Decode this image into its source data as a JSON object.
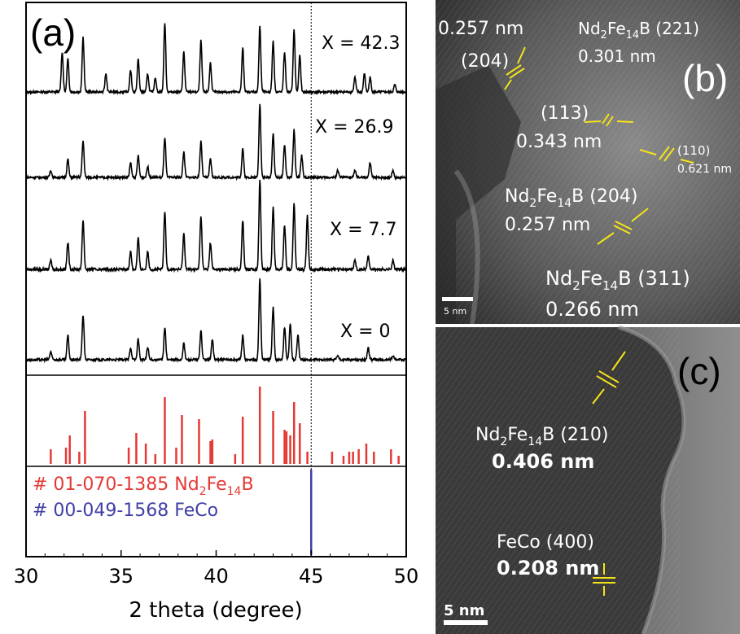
{
  "panel_a": {
    "label": "(a)",
    "xlabel": "2 theta (degree)",
    "xticks": [
      "30",
      "35",
      "40",
      "45",
      "50"
    ],
    "reference_line_x": 45,
    "pattern_labels": [
      "X = 42.3",
      "X = 26.9",
      "X = 7.7",
      "X = 0"
    ],
    "ref1": {
      "prefix": "# 01-070-1385 Nd",
      "sub1": "2",
      "mid": "Fe",
      "sub2": "14",
      "suffix": "B",
      "color": "#e53935"
    },
    "ref2": {
      "text": "# 00-049-1568 FeCo",
      "color": "#3f3fa6"
    }
  },
  "panel_b": {
    "label": "(b)",
    "scalebar": "5 nm",
    "annotations": {
      "a1": "0.257 nm",
      "a2": "(204)",
      "a3_pre": "Nd",
      "a3_s1": "2",
      "a3_mid": "Fe",
      "a3_s2": "14",
      "a3_post": "B (221)",
      "a4": "0.301 nm",
      "a5": "(113)",
      "a6": "0.343 nm",
      "a7": "(110)",
      "a8": "0.621 nm",
      "a9_pre": "Nd",
      "a9_s1": "2",
      "a9_mid": "Fe",
      "a9_s2": "14",
      "a9_post": "B (204)",
      "a10": "0.257 nm",
      "a11_pre": "Nd",
      "a11_s1": "2",
      "a11_mid": "Fe",
      "a11_s2": "14",
      "a11_post": "B (311)",
      "a12": "0.266 nm"
    }
  },
  "panel_c": {
    "label": "(c)",
    "scalebar": "5 nm",
    "annotations": {
      "c1_pre": "Nd",
      "c1_s1": "2",
      "c1_mid": "Fe",
      "c1_s2": "14",
      "c1_post": "B (210)",
      "c2": "0.406 nm",
      "c3": "FeCo (400)",
      "c4": "0.208 nm"
    }
  },
  "colors": {
    "ref_red": "#e53935",
    "ref_blue": "#3f3fa6",
    "annotation": "#f5e31a"
  },
  "chart_data": {
    "type": "line",
    "xlabel": "2 theta (degree)",
    "xlim": [
      30,
      50
    ],
    "xticks": [
      30,
      35,
      40,
      45,
      50
    ],
    "series": [
      {
        "name": "X = 42.3",
        "peaks": [
          [
            31.9,
            0.55
          ],
          [
            32.2,
            0.45
          ],
          [
            33.0,
            0.75
          ],
          [
            34.2,
            0.25
          ],
          [
            35.5,
            0.3
          ],
          [
            35.9,
            0.45
          ],
          [
            36.4,
            0.25
          ],
          [
            36.8,
            0.2
          ],
          [
            37.3,
            0.95
          ],
          [
            38.3,
            0.55
          ],
          [
            39.2,
            0.7
          ],
          [
            39.7,
            0.4
          ],
          [
            41.4,
            0.6
          ],
          [
            42.3,
            0.9
          ],
          [
            43.0,
            0.7
          ],
          [
            43.6,
            0.55
          ],
          [
            44.1,
            0.85
          ],
          [
            44.4,
            0.5
          ],
          [
            47.3,
            0.2
          ],
          [
            47.8,
            0.25
          ],
          [
            48.1,
            0.2
          ],
          [
            49.4,
            0.1
          ]
        ]
      },
      {
        "name": "X = 26.9",
        "peaks": [
          [
            31.3,
            0.1
          ],
          [
            32.2,
            0.25
          ],
          [
            33.0,
            0.5
          ],
          [
            35.5,
            0.2
          ],
          [
            35.9,
            0.3
          ],
          [
            36.4,
            0.15
          ],
          [
            37.3,
            0.55
          ],
          [
            38.3,
            0.35
          ],
          [
            39.2,
            0.5
          ],
          [
            39.7,
            0.25
          ],
          [
            41.4,
            0.4
          ],
          [
            42.3,
            1.0
          ],
          [
            43.0,
            0.6
          ],
          [
            43.6,
            0.45
          ],
          [
            44.1,
            0.65
          ],
          [
            44.5,
            0.3
          ],
          [
            46.4,
            0.1
          ],
          [
            47.3,
            0.1
          ],
          [
            48.1,
            0.2
          ],
          [
            49.3,
            0.1
          ]
        ]
      },
      {
        "name": "X = 7.7",
        "peaks": [
          [
            31.3,
            0.1
          ],
          [
            32.2,
            0.3
          ],
          [
            33.0,
            0.55
          ],
          [
            35.5,
            0.2
          ],
          [
            35.9,
            0.35
          ],
          [
            36.4,
            0.2
          ],
          [
            37.3,
            0.65
          ],
          [
            38.3,
            0.4
          ],
          [
            39.2,
            0.6
          ],
          [
            39.7,
            0.3
          ],
          [
            41.4,
            0.55
          ],
          [
            42.3,
            1.0
          ],
          [
            43.0,
            0.7
          ],
          [
            43.6,
            0.5
          ],
          [
            44.1,
            0.75
          ],
          [
            44.8,
            0.6
          ],
          [
            47.3,
            0.1
          ],
          [
            48.0,
            0.15
          ],
          [
            49.3,
            0.1
          ]
        ]
      },
      {
        "name": "X = 0",
        "peaks": [
          [
            31.3,
            0.1
          ],
          [
            32.2,
            0.3
          ],
          [
            33.0,
            0.55
          ],
          [
            35.5,
            0.15
          ],
          [
            35.9,
            0.25
          ],
          [
            36.4,
            0.15
          ],
          [
            37.3,
            0.4
          ],
          [
            38.3,
            0.2
          ],
          [
            39.2,
            0.35
          ],
          [
            39.8,
            0.25
          ],
          [
            41.4,
            0.3
          ],
          [
            42.3,
            1.0
          ],
          [
            43.0,
            0.65
          ],
          [
            43.6,
            0.4
          ],
          [
            43.9,
            0.45
          ],
          [
            44.3,
            0.3
          ],
          [
            46.4,
            0.05
          ],
          [
            48.0,
            0.15
          ],
          [
            49.3,
            0.05
          ]
        ]
      }
    ],
    "reference_sticks": [
      {
        "name": "# 01-070-1385 Nd2Fe14B",
        "color": "#e53935",
        "x": [
          31.3,
          32.1,
          32.3,
          32.8,
          33.1,
          35.4,
          35.8,
          36.3,
          36.8,
          37.3,
          37.9,
          38.2,
          39.1,
          39.7,
          39.8,
          41.0,
          41.4,
          42.3,
          43.0,
          43.6,
          43.7,
          43.9,
          44.1,
          44.4,
          44.8,
          46.1,
          46.7,
          47.0,
          47.2,
          47.5,
          47.9,
          48.3,
          49.2,
          49.6
        ],
        "y": [
          0.18,
          0.2,
          0.35,
          0.15,
          0.65,
          0.2,
          0.38,
          0.25,
          0.12,
          0.82,
          0.2,
          0.6,
          0.55,
          0.28,
          0.3,
          0.12,
          0.58,
          0.95,
          0.65,
          0.42,
          0.4,
          0.35,
          0.76,
          0.5,
          0.15,
          0.15,
          0.1,
          0.15,
          0.15,
          0.18,
          0.25,
          0.15,
          0.18,
          0.1
        ]
      },
      {
        "name": "# 00-049-1568 FeCo",
        "color": "#3f3fa6",
        "x": [
          45.0
        ],
        "y": [
          1.0
        ]
      }
    ]
  }
}
